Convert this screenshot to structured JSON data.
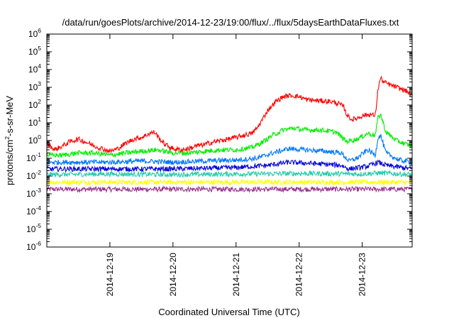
{
  "chart_data": {
    "type": "line",
    "title": "/data/run/goesPlots/archive/2014-12-23/19:00/flux/../flux/5daysEarthDataFluxes.txt",
    "xlabel": "Coordinated Universal Time (UTC)",
    "ylabel": "protons/cm2-s-sr-MeV",
    "ylabel_parts": {
      "base": "protons/cm",
      "sup": "2",
      "rest": "-s-sr-MeV"
    },
    "y_scale": "log",
    "ylim": [
      1e-06,
      1000000.0
    ],
    "y_tick_exponents": [
      -6,
      -5,
      -4,
      -3,
      -2,
      -1,
      0,
      1,
      2,
      3,
      4,
      5,
      6
    ],
    "y_tick_base": "10",
    "xlim": [
      "2014-12-18T00:00",
      "2014-12-23T19:00"
    ],
    "x_ticks": [
      {
        "label": "2014-12-19",
        "value": "2014-12-19T00:00"
      },
      {
        "label": "2014-12-20",
        "value": "2014-12-20T00:00"
      },
      {
        "label": "2014-12-21",
        "value": "2014-12-21T00:00"
      },
      {
        "label": "2014-12-22",
        "value": "2014-12-22T00:00"
      },
      {
        "label": "2014-12-23",
        "value": "2014-12-23T00:00"
      }
    ],
    "grid": false,
    "legend": "none",
    "series": [
      {
        "color": "#ff0000",
        "points": [
          [
            "2014-12-18T00:00",
            0.7
          ],
          [
            "2014-12-18T03:00",
            0.3
          ],
          [
            "2014-12-18T06:00",
            0.5
          ],
          [
            "2014-12-18T09:00",
            0.9
          ],
          [
            "2014-12-18T12:00",
            1.2
          ],
          [
            "2014-12-18T15:00",
            0.8
          ],
          [
            "2014-12-18T18:00",
            0.5
          ],
          [
            "2014-12-18T21:00",
            0.35
          ],
          [
            "2014-12-19T00:00",
            0.25
          ],
          [
            "2014-12-19T03:00",
            0.35
          ],
          [
            "2014-12-19T06:00",
            0.7
          ],
          [
            "2014-12-19T09:00",
            1.2
          ],
          [
            "2014-12-19T12:00",
            1.5
          ],
          [
            "2014-12-19T15:00",
            2.5
          ],
          [
            "2014-12-19T17:00",
            3.0
          ],
          [
            "2014-12-19T19:00",
            1.2
          ],
          [
            "2014-12-19T21:00",
            0.6
          ],
          [
            "2014-12-20T00:00",
            0.35
          ],
          [
            "2014-12-20T03:00",
            0.3
          ],
          [
            "2014-12-20T06:00",
            0.35
          ],
          [
            "2014-12-20T09:00",
            0.5
          ],
          [
            "2014-12-20T12:00",
            0.6
          ],
          [
            "2014-12-20T15:00",
            0.8
          ],
          [
            "2014-12-20T18:00",
            1.0
          ],
          [
            "2014-12-20T21:00",
            1.2
          ],
          [
            "2014-12-21T00:00",
            1.5
          ],
          [
            "2014-12-21T03:00",
            2.0
          ],
          [
            "2014-12-21T06:00",
            2.5
          ],
          [
            "2014-12-21T08:00",
            5
          ],
          [
            "2014-12-21T10:00",
            15
          ],
          [
            "2014-12-21T12:00",
            50
          ],
          [
            "2014-12-21T15:00",
            150
          ],
          [
            "2014-12-21T18:00",
            300
          ],
          [
            "2014-12-21T21:00",
            350
          ],
          [
            "2014-12-22T00:00",
            300
          ],
          [
            "2014-12-22T03:00",
            200
          ],
          [
            "2014-12-22T06:00",
            180
          ],
          [
            "2014-12-22T09:00",
            170
          ],
          [
            "2014-12-22T12:00",
            160
          ],
          [
            "2014-12-22T15:00",
            120
          ],
          [
            "2014-12-22T17:00",
            80
          ],
          [
            "2014-12-22T18:00",
            30
          ],
          [
            "2014-12-22T20:00",
            15
          ],
          [
            "2014-12-22T22:00",
            18
          ],
          [
            "2014-12-23T00:00",
            25
          ],
          [
            "2014-12-23T03:00",
            30
          ],
          [
            "2014-12-23T05:00",
            25
          ],
          [
            "2014-12-23T06:00",
            800
          ],
          [
            "2014-12-23T07:00",
            3500
          ],
          [
            "2014-12-23T08:00",
            2000
          ],
          [
            "2014-12-23T11:00",
            1300
          ],
          [
            "2014-12-23T14:00",
            900
          ],
          [
            "2014-12-23T17:00",
            600
          ],
          [
            "2014-12-23T19:00",
            300
          ]
        ]
      },
      {
        "color": "#00ee00",
        "points": [
          [
            "2014-12-18T00:00",
            0.15
          ],
          [
            "2014-12-18T06:00",
            0.15
          ],
          [
            "2014-12-18T12:00",
            0.2
          ],
          [
            "2014-12-18T18:00",
            0.2
          ],
          [
            "2014-12-19T00:00",
            0.15
          ],
          [
            "2014-12-19T06:00",
            0.2
          ],
          [
            "2014-12-19T12:00",
            0.25
          ],
          [
            "2014-12-19T18:00",
            0.3
          ],
          [
            "2014-12-20T00:00",
            0.2
          ],
          [
            "2014-12-20T06:00",
            0.2
          ],
          [
            "2014-12-20T12:00",
            0.25
          ],
          [
            "2014-12-20T18:00",
            0.3
          ],
          [
            "2014-12-21T00:00",
            0.3
          ],
          [
            "2014-12-21T06:00",
            0.4
          ],
          [
            "2014-12-21T10:00",
            0.8
          ],
          [
            "2014-12-21T14:00",
            2
          ],
          [
            "2014-12-21T18:00",
            4
          ],
          [
            "2014-12-21T22:00",
            5
          ],
          [
            "2014-12-22T02:00",
            4
          ],
          [
            "2014-12-22T08:00",
            4
          ],
          [
            "2014-12-22T14:00",
            3
          ],
          [
            "2014-12-22T18:00",
            0.9
          ],
          [
            "2014-12-22T22:00",
            1.2
          ],
          [
            "2014-12-23T02:00",
            2.5
          ],
          [
            "2014-12-23T05:00",
            2.0
          ],
          [
            "2014-12-23T06:00",
            20
          ],
          [
            "2014-12-23T07:00",
            30
          ],
          [
            "2014-12-23T09:00",
            3
          ],
          [
            "2014-12-23T13:00",
            1.0
          ],
          [
            "2014-12-23T17:00",
            0.6
          ],
          [
            "2014-12-23T19:00",
            0.5
          ]
        ]
      },
      {
        "color": "#0077ff",
        "points": [
          [
            "2014-12-18T00:00",
            0.06
          ],
          [
            "2014-12-18T12:00",
            0.06
          ],
          [
            "2014-12-19T00:00",
            0.06
          ],
          [
            "2014-12-19T12:00",
            0.07
          ],
          [
            "2014-12-20T00:00",
            0.06
          ],
          [
            "2014-12-20T12:00",
            0.07
          ],
          [
            "2014-12-21T00:00",
            0.08
          ],
          [
            "2014-12-21T08:00",
            0.1
          ],
          [
            "2014-12-21T14:00",
            0.2
          ],
          [
            "2014-12-21T20:00",
            0.35
          ],
          [
            "2014-12-22T02:00",
            0.3
          ],
          [
            "2014-12-22T10:00",
            0.25
          ],
          [
            "2014-12-22T16:00",
            0.2
          ],
          [
            "2014-12-22T19:00",
            0.07
          ],
          [
            "2014-12-22T22:00",
            0.1
          ],
          [
            "2014-12-23T02:00",
            0.3
          ],
          [
            "2014-12-23T05:00",
            0.15
          ],
          [
            "2014-12-23T06:00",
            1.5
          ],
          [
            "2014-12-23T07:00",
            2.0
          ],
          [
            "2014-12-23T09:00",
            0.2
          ],
          [
            "2014-12-23T14:00",
            0.08
          ],
          [
            "2014-12-23T19:00",
            0.06
          ]
        ]
      },
      {
        "color": "#0000dd",
        "points": [
          [
            "2014-12-18T00:00",
            0.025
          ],
          [
            "2014-12-19T00:00",
            0.025
          ],
          [
            "2014-12-20T00:00",
            0.025
          ],
          [
            "2014-12-21T00:00",
            0.03
          ],
          [
            "2014-12-21T12:00",
            0.04
          ],
          [
            "2014-12-21T20:00",
            0.06
          ],
          [
            "2014-12-22T06:00",
            0.05
          ],
          [
            "2014-12-22T16:00",
            0.04
          ],
          [
            "2014-12-22T19:00",
            0.025
          ],
          [
            "2014-12-23T02:00",
            0.035
          ],
          [
            "2014-12-23T06:00",
            0.06
          ],
          [
            "2014-12-23T09:00",
            0.04
          ],
          [
            "2014-12-23T19:00",
            0.025
          ]
        ]
      },
      {
        "color": "#22ccaa",
        "points": [
          [
            "2014-12-18T00:00",
            0.012
          ],
          [
            "2014-12-19T00:00",
            0.013
          ],
          [
            "2014-12-20T00:00",
            0.012
          ],
          [
            "2014-12-21T00:00",
            0.013
          ],
          [
            "2014-12-22T00:00",
            0.014
          ],
          [
            "2014-12-23T00:00",
            0.013
          ],
          [
            "2014-12-23T06:00",
            0.015
          ],
          [
            "2014-12-23T19:00",
            0.012
          ]
        ]
      },
      {
        "color": "#ffff00",
        "points": [
          [
            "2014-12-18T00:00",
            0.0045
          ],
          [
            "2014-12-19T00:00",
            0.0045
          ],
          [
            "2014-12-20T00:00",
            0.0045
          ],
          [
            "2014-12-21T00:00",
            0.0045
          ],
          [
            "2014-12-22T00:00",
            0.0045
          ],
          [
            "2014-12-23T00:00",
            0.0045
          ],
          [
            "2014-12-23T19:00",
            0.0045
          ]
        ]
      },
      {
        "color": "#993388",
        "points": [
          [
            "2014-12-18T00:00",
            0.0018
          ],
          [
            "2014-12-19T00:00",
            0.0018
          ],
          [
            "2014-12-20T00:00",
            0.0018
          ],
          [
            "2014-12-21T00:00",
            0.0018
          ],
          [
            "2014-12-22T00:00",
            0.0018
          ],
          [
            "2014-12-23T00:00",
            0.0018
          ],
          [
            "2014-12-23T19:00",
            0.0018
          ]
        ]
      }
    ]
  }
}
